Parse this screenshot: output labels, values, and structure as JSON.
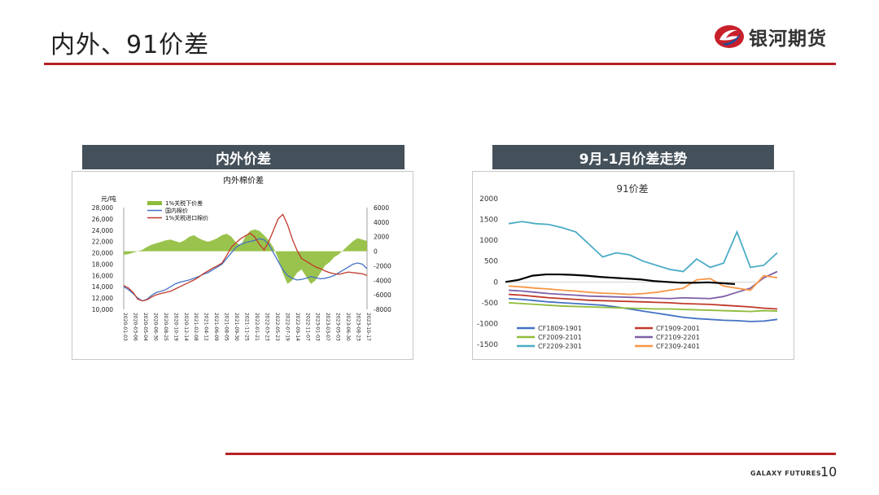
{
  "header": {
    "title": "内外、91价差",
    "logo_text": "银河期货"
  },
  "footer": {
    "brand": "GALAXY FUTURES",
    "page_number": "10"
  },
  "panels": {
    "left_title": "内外价差",
    "right_title": "9月-1月价差走势"
  },
  "colors": {
    "accent": "#b52025",
    "panel_header": "#44505a"
  },
  "chart_data": [
    {
      "type": "line",
      "title": "内外棉价差",
      "ylabel": "元/吨",
      "ylim": [
        10000,
        28000
      ],
      "y2lim": [
        -8000,
        6000
      ],
      "yticks": [
        "28,000",
        "26,000",
        "24,000",
        "22,000",
        "20,000",
        "18,000",
        "16,000",
        "14,000",
        "12,000",
        "10,000"
      ],
      "y2ticks": [
        "6000",
        "4000",
        "2000",
        "0",
        "-2000",
        "-4000",
        "-6000",
        "-8000"
      ],
      "xticks": [
        "2020-01-03",
        "2020-03-06",
        "2020-05-04",
        "2020-06-30",
        "2020-08-25",
        "2020-10-19",
        "2020-12-14",
        "2021-02-08",
        "2021-04-12",
        "2021-06-09",
        "2021-08-05",
        "2021-09-30",
        "2021-11-25",
        "2022-01-21",
        "2022-03-23",
        "2022-05-23",
        "2022-07-19",
        "2022-09-14",
        "2022-11-07",
        "2023-01-03",
        "2023-03-07",
        "2023-05-03",
        "2023-06-30",
        "2023-08-23",
        "2023-10-17"
      ],
      "grid": false,
      "legend_position": "top-left",
      "series": [
        {
          "name": "1%关税下价差",
          "axis": "right",
          "color": "#8fbc3a",
          "values": [
            -500,
            -400,
            -200,
            0,
            200,
            600,
            900,
            1100,
            1300,
            1500,
            1600,
            1400,
            1200,
            1500,
            2000,
            2200,
            1800,
            1500,
            1300,
            1500,
            1800,
            2200,
            2400,
            2000,
            1200,
            800,
            2000,
            2800,
            3000,
            2800,
            2200,
            1500,
            500,
            -1000,
            -3000,
            -4500,
            -4000,
            -3000,
            -2500,
            -3500,
            -4500,
            -4000,
            -3000,
            -2000,
            -1500,
            -800,
            -400,
            200,
            800,
            1400,
            1800,
            1600,
            1400
          ]
        },
        {
          "name": "国内棉价",
          "axis": "left",
          "color": "#4472c4",
          "values": [
            14000,
            13500,
            12800,
            12000,
            11500,
            11800,
            12500,
            13000,
            13200,
            13500,
            14000,
            14500,
            14800,
            15000,
            15200,
            15500,
            15800,
            16200,
            16500,
            17000,
            17500,
            18000,
            19000,
            20000,
            21000,
            21500,
            21800,
            22000,
            22200,
            22500,
            22300,
            21500,
            20000,
            18500,
            17000,
            16000,
            15500,
            15200,
            15300,
            15500,
            15800,
            15600,
            15400,
            15500,
            15700,
            16000,
            16500,
            17000,
            17500,
            18000,
            18200,
            18000,
            17200
          ]
        },
        {
          "name": "1%关税进口棉价",
          "axis": "left",
          "color": "#c0392b",
          "values": [
            14200,
            13800,
            13000,
            11800,
            11500,
            11700,
            12200,
            12600,
            12800,
            13000,
            13200,
            13600,
            14000,
            14400,
            14800,
            15200,
            15700,
            16300,
            16800,
            17300,
            17700,
            18200,
            19500,
            21000,
            21800,
            22500,
            23000,
            23500,
            22800,
            21500,
            20500,
            22000,
            24000,
            26000,
            26800,
            25000,
            22500,
            20500,
            19000,
            18500,
            18000,
            17500,
            17200,
            16800,
            16500,
            16300,
            16200,
            16400,
            16600,
            16500,
            16400,
            16300,
            16000
          ]
        }
      ]
    },
    {
      "type": "line",
      "title": "91价差",
      "ylim": [
        -1500,
        2000
      ],
      "yticks": [
        "2000",
        "1500",
        "1000",
        "500",
        "0",
        "-500",
        "-1000",
        "-1500"
      ],
      "grid": false,
      "legend_position": "bottom",
      "series": [
        {
          "name": "CF1809-1901",
          "color": "#4472c4",
          "values": [
            -400,
            -420,
            -450,
            -480,
            -500,
            -520,
            -540,
            -560,
            -600,
            -650,
            -700,
            -750,
            -800,
            -850,
            -880,
            -900,
            -920,
            -930,
            -950,
            -940,
            -900
          ]
        },
        {
          "name": "CF1909-2001",
          "color": "#c0392b",
          "values": [
            -300,
            -320,
            -350,
            -380,
            -400,
            -420,
            -440,
            -450,
            -460,
            -470,
            -480,
            -490,
            -500,
            -520,
            -530,
            -540,
            -560,
            -580,
            -600,
            -630,
            -650
          ]
        },
        {
          "name": "CF2009-2101",
          "color": "#8fbc3a",
          "values": [
            -500,
            -520,
            -540,
            -560,
            -580,
            -590,
            -600,
            -610,
            -620,
            -630,
            -640,
            -650,
            -650,
            -660,
            -670,
            -680,
            -690,
            -700,
            -710,
            -690,
            -700
          ]
        },
        {
          "name": "CF2109-2201",
          "color": "#7f60a8",
          "values": [
            -200,
            -220,
            -250,
            -280,
            -300,
            -320,
            -340,
            -350,
            -360,
            -370,
            -380,
            -390,
            -400,
            -380,
            -390,
            -400,
            -350,
            -250,
            -150,
            100,
            250
          ]
        },
        {
          "name": "CF2209-2301",
          "color": "#4bacc6",
          "values": [
            1400,
            1450,
            1400,
            1380,
            1300,
            1200,
            900,
            600,
            700,
            650,
            500,
            400,
            300,
            250,
            550,
            350,
            450,
            1200,
            350,
            400,
            700
          ]
        },
        {
          "name": "CF2309-2401",
          "color": "#f79646",
          "values": [
            -100,
            -120,
            -150,
            -170,
            -200,
            -220,
            -250,
            -270,
            -280,
            -300,
            -280,
            -250,
            -200,
            -150,
            50,
            80,
            -100,
            -150,
            -200,
            150,
            100
          ]
        },
        {
          "name": "",
          "color": "#000000",
          "values": [
            0,
            50,
            150,
            180,
            180,
            170,
            150,
            120,
            100,
            80,
            60,
            20,
            0,
            -20,
            -20,
            -10,
            -30,
            -50
          ]
        }
      ]
    }
  ]
}
